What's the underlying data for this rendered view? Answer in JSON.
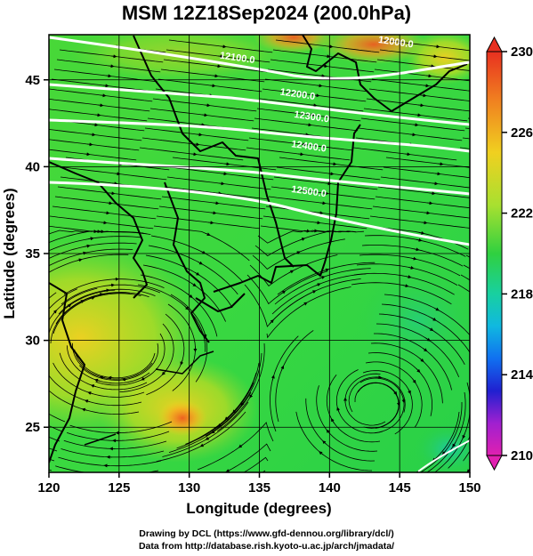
{
  "title": "MSM 12Z18Sep2024 (200.0hPa)",
  "map": {
    "x_axis": {
      "label": "Longitude (degrees)",
      "range": [
        120,
        150
      ],
      "ticks": [
        "120",
        "125",
        "130",
        "135",
        "140",
        "145",
        "150"
      ]
    },
    "y_axis": {
      "label": "Latitude  (degrees)",
      "range": [
        22.4,
        47.6
      ],
      "ticks": [
        "25",
        "30",
        "35",
        "40",
        "45"
      ]
    },
    "grid": true,
    "field": "temperature shading with wind streamlines and geopotential height contours",
    "contour_labels": [
      {
        "text": "12100.0",
        "lon": 133.4,
        "lat": 46.1
      },
      {
        "text": "12200.0",
        "lon": 137.7,
        "lat": 44.0
      },
      {
        "text": "12300.0",
        "lon": 138.7,
        "lat": 42.7
      },
      {
        "text": "12400.0",
        "lon": 138.5,
        "lat": 41.0
      },
      {
        "text": "12500.0",
        "lon": 138.5,
        "lat": 38.4
      },
      {
        "text": "12000.0",
        "lon": 144.7,
        "lat": 47.0
      }
    ]
  },
  "colorbar": {
    "labels": [
      "230",
      "226",
      "222",
      "218",
      "214",
      "210"
    ],
    "min": 210,
    "max": 230
  },
  "credits": {
    "line1": "Drawing by DCL (https://www.gfd-dennou.org/library/dcl/)",
    "line2": "Data from http://database.rish.kyoto-u.ac.jp/arch/jmadata/"
  },
  "colors": {
    "warm": "#f0c020",
    "hot": "#e85a20",
    "mid": "#30d040",
    "cool": "#18c8b0",
    "contour": "#ffffff",
    "coast": "#000000"
  }
}
